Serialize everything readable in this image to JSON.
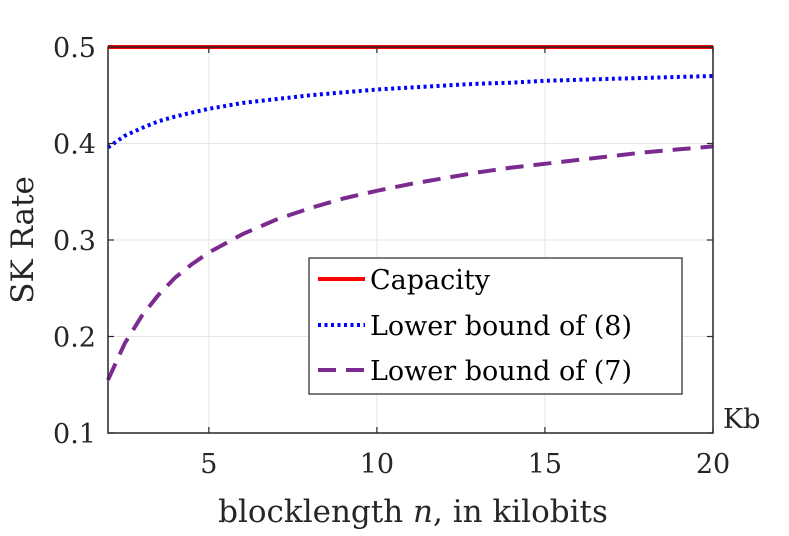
{
  "chart_data": {
    "type": "line",
    "title": "",
    "xlabel_prefix": "blocklength ",
    "xlabel_var": "n",
    "xlabel_suffix": ", in kilobits",
    "ylabel": "SK Rate",
    "x_unit": "Kb",
    "xlim": [
      2,
      20
    ],
    "ylim": [
      0.1,
      0.5
    ],
    "xticks": [
      5,
      10,
      15,
      20
    ],
    "yticks": [
      0.1,
      0.2,
      0.3,
      0.4,
      0.5
    ],
    "xtick_labels": [
      "5",
      "10",
      "15",
      "20"
    ],
    "ytick_labels": [
      "0.1",
      "0.2",
      "0.3",
      "0.4",
      "0.5"
    ],
    "grid": true,
    "legend_position": "lower-right",
    "series": [
      {
        "name": "Capacity",
        "color": "#ff0000",
        "style": "solid",
        "x": [
          2,
          20
        ],
        "y": [
          0.5,
          0.5
        ]
      },
      {
        "name": "Lower bound of (8)",
        "color": "#0000ff",
        "style": "dotted",
        "x": [
          2,
          2.5,
          3,
          3.5,
          4,
          4.5,
          5,
          6,
          7,
          8,
          9,
          10,
          11,
          12,
          13,
          14,
          15,
          16,
          17,
          18,
          19,
          20
        ],
        "y": [
          0.396,
          0.408,
          0.416,
          0.423,
          0.428,
          0.432,
          0.436,
          0.442,
          0.446,
          0.45,
          0.453,
          0.456,
          0.458,
          0.46,
          0.462,
          0.463,
          0.465,
          0.466,
          0.467,
          0.468,
          0.469,
          0.47
        ]
      },
      {
        "name": "Lower bound of (7)",
        "color": "#7b2a90",
        "style": "dashed",
        "x": [
          2,
          2.5,
          3,
          3.5,
          4,
          4.5,
          5,
          6,
          7,
          8,
          9,
          10,
          11,
          12,
          13,
          14,
          15,
          16,
          17,
          18,
          19,
          20
        ],
        "y": [
          0.155,
          0.193,
          0.221,
          0.243,
          0.261,
          0.275,
          0.287,
          0.306,
          0.321,
          0.333,
          0.343,
          0.351,
          0.358,
          0.364,
          0.37,
          0.375,
          0.379,
          0.383,
          0.387,
          0.391,
          0.394,
          0.397
        ]
      }
    ]
  }
}
